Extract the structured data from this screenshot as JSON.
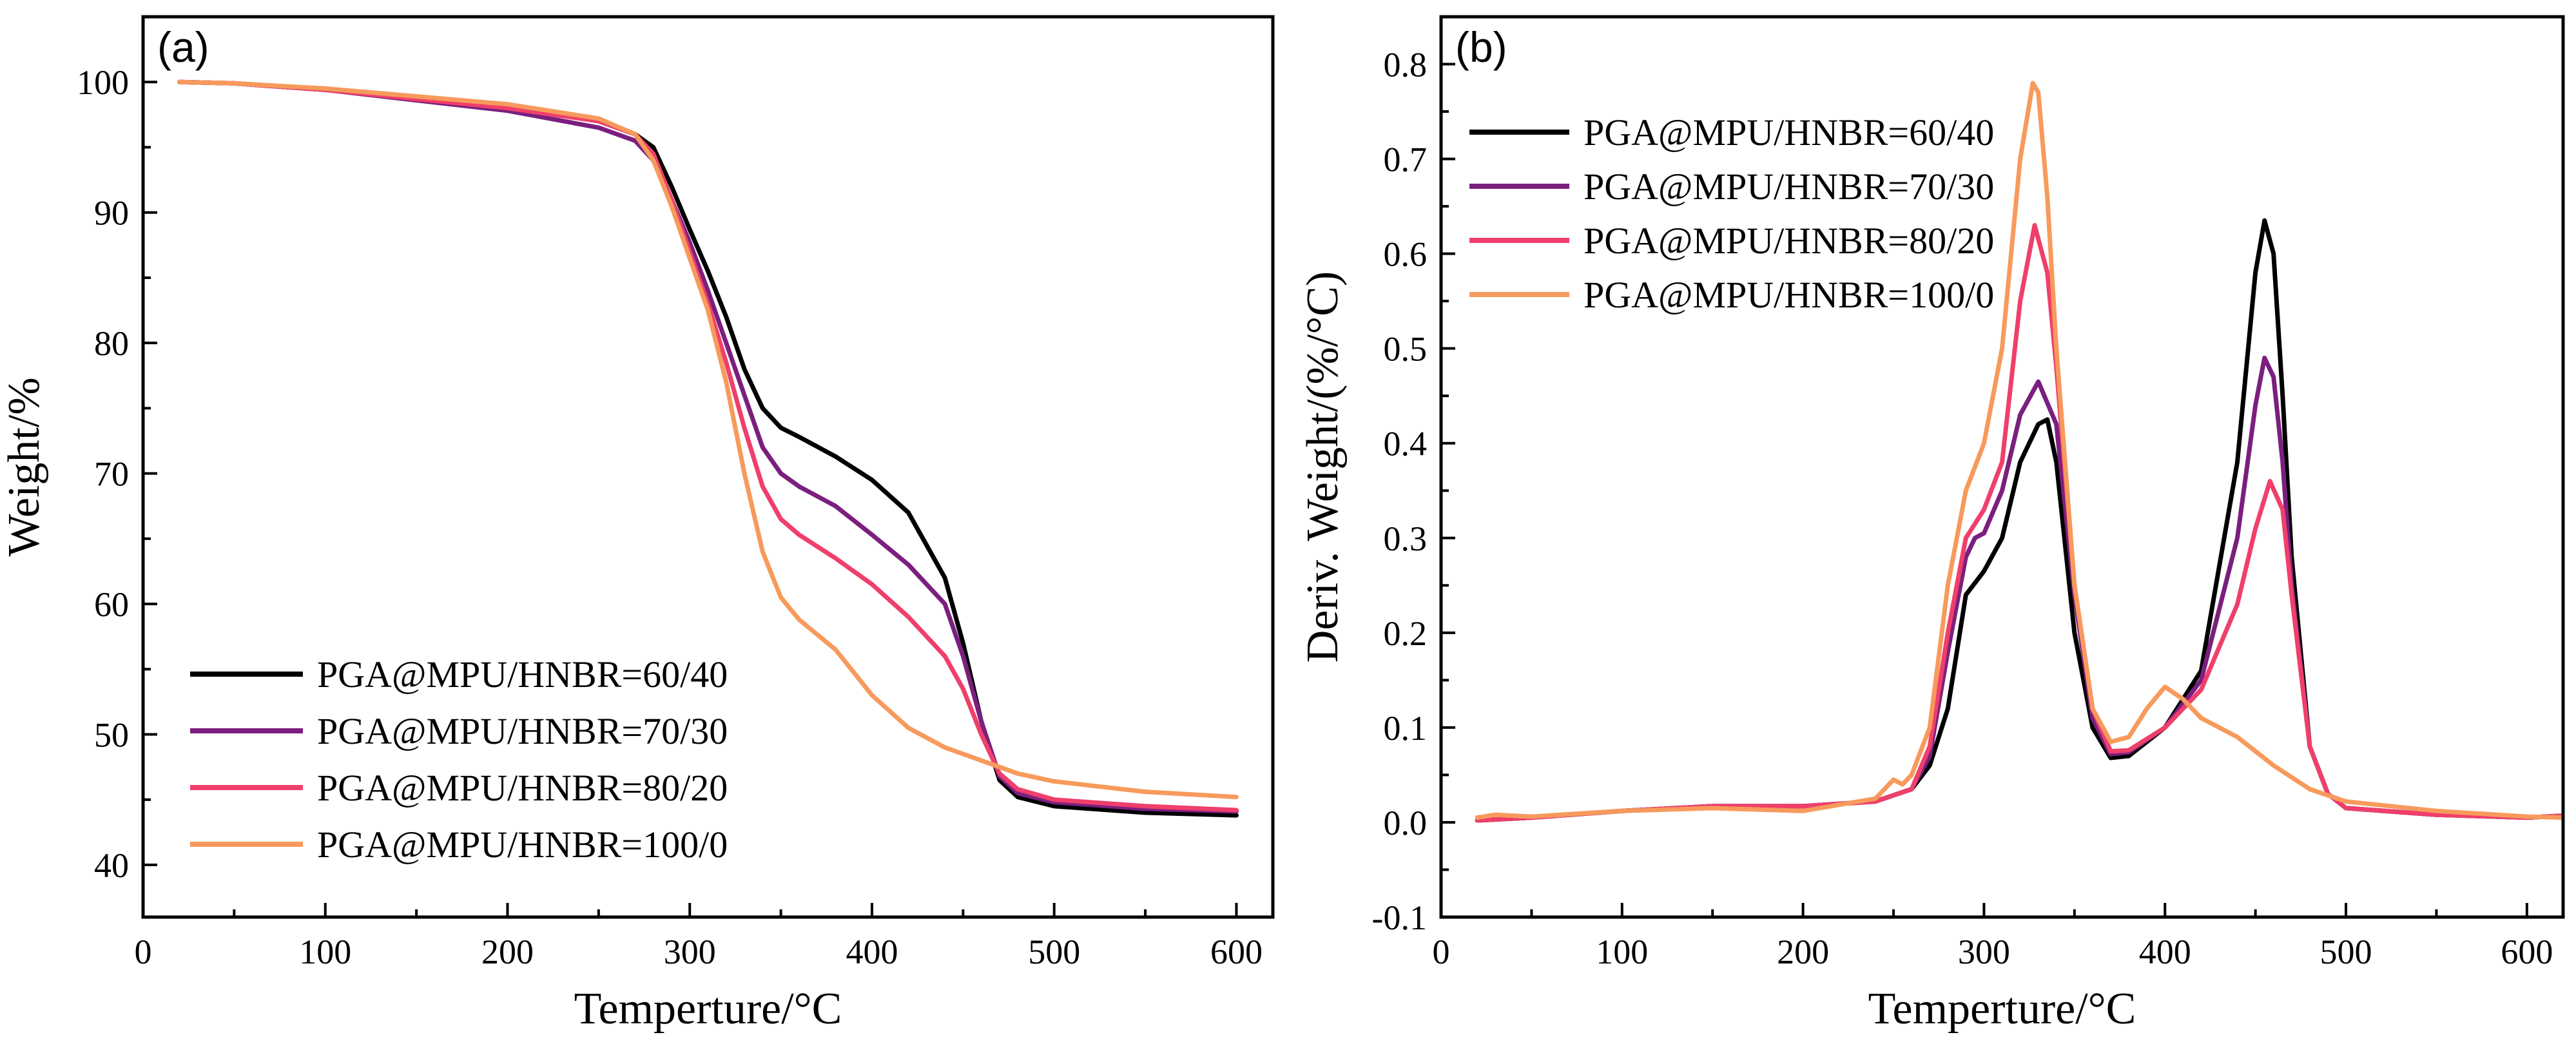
{
  "series_colors": [
    "#000000",
    "#7b1f7f",
    "#ef3f6b",
    "#f79a5c"
  ],
  "chart_data": [
    {
      "type": "line",
      "panel_label": "(a)",
      "xlabel": "Temperture/°C",
      "ylabel": "Weight/%",
      "xlim": [
        0,
        620
      ],
      "ylim": [
        36,
        105
      ],
      "xticks": [
        0,
        100,
        200,
        300,
        400,
        500,
        600
      ],
      "xtick_labels": [
        "0",
        "100",
        "200",
        "300",
        "400",
        "500",
        "600"
      ],
      "yticks": [
        40,
        50,
        60,
        70,
        80,
        90,
        100
      ],
      "ytick_labels": [
        "40",
        "50",
        "60",
        "70",
        "80",
        "90",
        "100"
      ],
      "legend_position": "bottom-left",
      "series": [
        {
          "name": "PGA@MPU/HNBR=60/40",
          "x": [
            20,
            50,
            100,
            150,
            200,
            250,
            270,
            280,
            290,
            300,
            310,
            320,
            330,
            340,
            350,
            360,
            380,
            400,
            420,
            440,
            450,
            460,
            470,
            480,
            500,
            550,
            600
          ],
          "y": [
            100,
            99.9,
            99.4,
            98.8,
            98.2,
            97,
            96,
            95,
            92,
            88.7,
            85.5,
            82,
            78,
            75,
            73.5,
            72.8,
            71.3,
            69.5,
            67,
            62,
            57,
            51,
            46.5,
            45.2,
            44.5,
            44,
            43.8
          ]
        },
        {
          "name": "PGA@MPU/HNBR=70/30",
          "x": [
            20,
            50,
            100,
            150,
            200,
            250,
            270,
            280,
            290,
            300,
            310,
            320,
            330,
            340,
            350,
            360,
            380,
            400,
            420,
            440,
            450,
            460,
            470,
            480,
            500,
            550,
            600
          ],
          "y": [
            100,
            99.9,
            99.4,
            98.6,
            97.8,
            96.5,
            95.5,
            94,
            91,
            87.7,
            84,
            80,
            76,
            72,
            70,
            69,
            67.5,
            65.3,
            63,
            60,
            56,
            51,
            46.8,
            45.5,
            44.8,
            44.3,
            44.1
          ]
        },
        {
          "name": "PGA@MPU/HNBR=80/20",
          "x": [
            20,
            50,
            100,
            150,
            200,
            250,
            270,
            280,
            290,
            300,
            310,
            320,
            330,
            340,
            350,
            360,
            380,
            400,
            420,
            440,
            450,
            460,
            470,
            480,
            500,
            550,
            600
          ],
          "y": [
            100,
            99.9,
            99.4,
            98.7,
            98,
            97,
            96,
            94.5,
            91,
            87,
            83,
            78.5,
            73.5,
            69,
            66.5,
            65.3,
            63.5,
            61.5,
            59,
            56,
            53.5,
            50,
            47,
            45.8,
            45,
            44.5,
            44.2
          ]
        },
        {
          "name": "PGA@MPU/HNBR=100/0",
          "x": [
            20,
            50,
            100,
            150,
            200,
            250,
            270,
            280,
            290,
            300,
            310,
            320,
            330,
            340,
            350,
            360,
            380,
            400,
            420,
            440,
            460,
            480,
            500,
            550,
            600
          ],
          "y": [
            100,
            99.9,
            99.5,
            98.9,
            98.3,
            97.2,
            96,
            94,
            90.5,
            86.5,
            82.5,
            77,
            70,
            64,
            60.5,
            58.8,
            56.5,
            53,
            50.5,
            49,
            48,
            47,
            46.4,
            45.6,
            45.2
          ]
        }
      ]
    },
    {
      "type": "line",
      "panel_label": "(b)",
      "xlabel": "Temperture/°C",
      "ylabel": "Deriv. Weight/(%/°C)",
      "xlim": [
        0,
        620
      ],
      "ylim": [
        -0.1,
        0.85
      ],
      "xticks": [
        0,
        100,
        200,
        300,
        400,
        500,
        600
      ],
      "xtick_labels": [
        "0",
        "100",
        "200",
        "300",
        "400",
        "500",
        "600"
      ],
      "yticks": [
        -0.1,
        0.0,
        0.1,
        0.2,
        0.3,
        0.4,
        0.5,
        0.6,
        0.7,
        0.8
      ],
      "ytick_labels": [
        "-0.1",
        "0.0",
        "0.1",
        "0.2",
        "0.3",
        "0.4",
        "0.5",
        "0.6",
        "0.7",
        "0.8"
      ],
      "legend_position": "top-left",
      "series": [
        {
          "name": "PGA@MPU/HNBR=60/40",
          "x": [
            20,
            50,
            100,
            150,
            200,
            240,
            260,
            270,
            280,
            290,
            300,
            310,
            320,
            330,
            335,
            340,
            350,
            360,
            370,
            380,
            400,
            420,
            440,
            450,
            455,
            460,
            465,
            470,
            480,
            490,
            500,
            550,
            600,
            620
          ],
          "y": [
            0.002,
            0.005,
            0.012,
            0.017,
            0.017,
            0.022,
            0.035,
            0.06,
            0.12,
            0.24,
            0.265,
            0.3,
            0.38,
            0.42,
            0.425,
            0.38,
            0.2,
            0.1,
            0.068,
            0.07,
            0.1,
            0.16,
            0.38,
            0.58,
            0.635,
            0.6,
            0.45,
            0.28,
            0.08,
            0.03,
            0.015,
            0.008,
            0.005,
            0.007
          ]
        },
        {
          "name": "PGA@MPU/HNBR=70/30",
          "x": [
            20,
            50,
            100,
            150,
            200,
            240,
            260,
            270,
            280,
            290,
            295,
            300,
            310,
            320,
            330,
            340,
            350,
            360,
            370,
            380,
            400,
            420,
            440,
            450,
            455,
            460,
            465,
            470,
            480,
            490,
            500,
            550,
            600,
            620
          ],
          "y": [
            0.002,
            0.005,
            0.012,
            0.017,
            0.017,
            0.022,
            0.035,
            0.07,
            0.18,
            0.28,
            0.3,
            0.305,
            0.35,
            0.43,
            0.465,
            0.42,
            0.24,
            0.11,
            0.072,
            0.074,
            0.1,
            0.15,
            0.3,
            0.44,
            0.49,
            0.47,
            0.38,
            0.25,
            0.08,
            0.03,
            0.015,
            0.008,
            0.005,
            0.007
          ]
        },
        {
          "name": "PGA@MPU/HNBR=80/20",
          "x": [
            20,
            50,
            100,
            150,
            200,
            240,
            260,
            270,
            280,
            290,
            300,
            310,
            320,
            328,
            335,
            340,
            350,
            360,
            370,
            380,
            400,
            420,
            440,
            450,
            458,
            465,
            470,
            480,
            490,
            500,
            550,
            600,
            620
          ],
          "y": [
            0.002,
            0.005,
            0.012,
            0.017,
            0.017,
            0.022,
            0.035,
            0.08,
            0.2,
            0.3,
            0.33,
            0.38,
            0.55,
            0.63,
            0.58,
            0.48,
            0.25,
            0.12,
            0.075,
            0.076,
            0.1,
            0.14,
            0.23,
            0.31,
            0.36,
            0.33,
            0.24,
            0.08,
            0.03,
            0.015,
            0.008,
            0.005,
            0.007
          ]
        },
        {
          "name": "PGA@MPU/HNBR=100/0",
          "x": [
            20,
            30,
            50,
            100,
            150,
            200,
            240,
            250,
            255,
            260,
            270,
            280,
            290,
            300,
            310,
            320,
            327,
            330,
            335,
            340,
            350,
            360,
            370,
            380,
            390,
            400,
            410,
            420,
            440,
            460,
            480,
            500,
            550,
            600,
            620
          ],
          "y": [
            0.005,
            0.008,
            0.006,
            0.012,
            0.015,
            0.012,
            0.025,
            0.045,
            0.04,
            0.05,
            0.1,
            0.25,
            0.35,
            0.4,
            0.5,
            0.7,
            0.78,
            0.77,
            0.66,
            0.5,
            0.25,
            0.12,
            0.085,
            0.09,
            0.12,
            0.143,
            0.13,
            0.11,
            0.09,
            0.06,
            0.035,
            0.022,
            0.012,
            0.006,
            0.005
          ]
        }
      ]
    }
  ]
}
